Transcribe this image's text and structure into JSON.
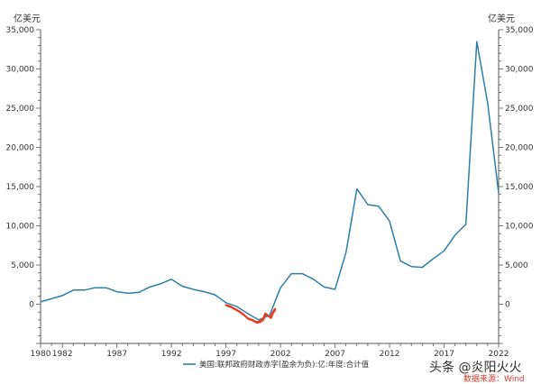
{
  "chart_data": {
    "type": "line",
    "ylabel_left": "亿美元",
    "ylabel_right": "亿美元",
    "ylim": [
      -5000,
      35000
    ],
    "yticks": [
      -5000,
      0,
      5000,
      10000,
      15000,
      20000,
      25000,
      30000,
      35000
    ],
    "ytick_labels": [
      "",
      "0",
      "5,000",
      "10,000",
      "15,000",
      "20,000",
      "25,000",
      "30,000",
      "35,000"
    ],
    "xlim": [
      1980,
      2022
    ],
    "xtick_labels": [
      "1980",
      "1982",
      "1987",
      "1992",
      "1997",
      "2002",
      "2007",
      "2012",
      "2017",
      "2022"
    ],
    "grid": false,
    "legend_position": "bottom-center",
    "series": [
      {
        "name": "美国:联邦政府财政赤字(盈余为负):亿:年度:合计值",
        "color": "#2e7fa8",
        "x": [
          1980,
          1981,
          1982,
          1983,
          1984,
          1985,
          1986,
          1987,
          1988,
          1989,
          1990,
          1991,
          1992,
          1993,
          1994,
          1995,
          1996,
          1997,
          1998,
          1999,
          2000,
          2001,
          2002,
          2003,
          2004,
          2005,
          2006,
          2007,
          2008,
          2009,
          2010,
          2011,
          2012,
          2013,
          2014,
          2015,
          2016,
          2017,
          2018,
          2019,
          2020,
          2021,
          2022
        ],
        "values": [
          300,
          700,
          1100,
          1800,
          1800,
          2100,
          2100,
          1600,
          1400,
          1500,
          2200,
          2600,
          3200,
          2300,
          1900,
          1600,
          1200,
          200,
          -300,
          -1200,
          -2000,
          -1400,
          2100,
          3900,
          3900,
          3200,
          2200,
          1900,
          6600,
          14700,
          12700,
          12500,
          10600,
          5500,
          4800,
          4700,
          5800,
          6800,
          8800,
          10200,
          33500,
          25600,
          14200
        ]
      }
    ],
    "annotation": {
      "type": "hand-drawn-highlight",
      "color": "#e23b1e",
      "x": [
        1997,
        1997.4,
        1997.8,
        1998.2,
        1998.6,
        1999.0,
        1999.4,
        1999.8,
        2000.1,
        2000.4,
        2000.6,
        2000.9,
        2001.1,
        2001.3,
        2001.5
      ],
      "values": [
        -100,
        -300,
        -600,
        -900,
        -1300,
        -1800,
        -2000,
        -2300,
        -2200,
        -1900,
        -1200,
        -1500,
        -1700,
        -1000,
        -600
      ]
    }
  },
  "watermark": {
    "main": "头条 @炎阳火火",
    "sub": "数据来源：Wind"
  }
}
